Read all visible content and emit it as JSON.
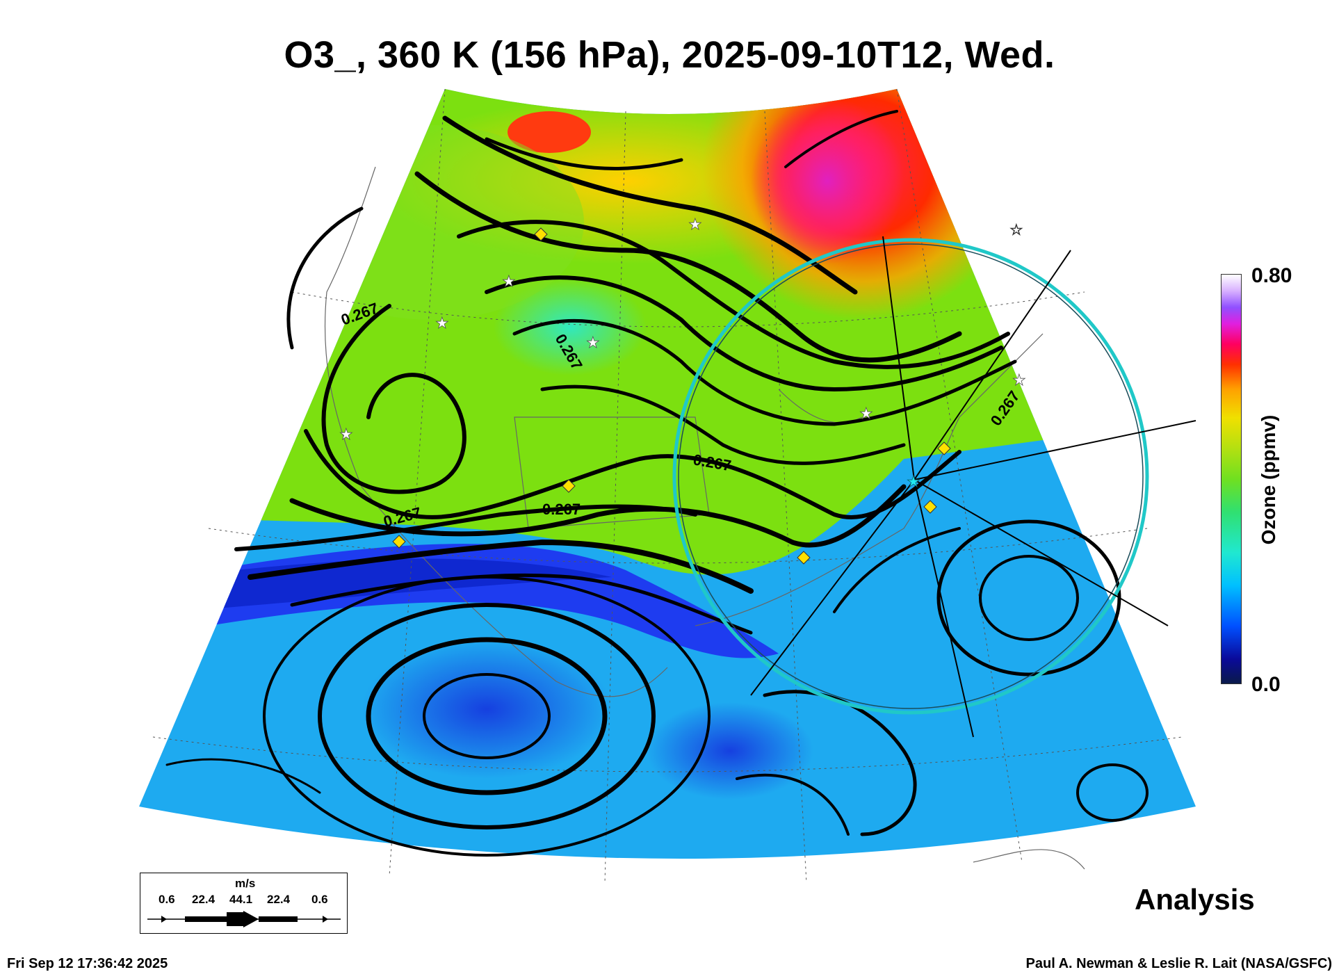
{
  "title": "O3_, 360 K (156 hPa), 2025-09-10T12, Wed.",
  "colorbar": {
    "max_label": "0.80",
    "min_label": "0.0",
    "label": "Ozone (ppmv)",
    "range": [
      0.0,
      0.8
    ]
  },
  "contour_labels": [
    "0.267",
    "0.267",
    "0.267",
    "0.267",
    "0.267",
    "0.267"
  ],
  "analysis_label": "Analysis",
  "footer": {
    "timestamp": "Fri Sep 12 17:36:42 2025",
    "credit": "Paul A. Newman & Leslie R. Lait (NASA/GSFC)"
  },
  "wind_legend": {
    "unit": "m/s",
    "ticks": [
      "0.6",
      "22.4",
      "44.1",
      "22.4",
      "0.6"
    ]
  },
  "colors": {
    "low_ozone": "#1e3cf0",
    "mid_ozone": "#7ce010",
    "high_ozone": "#ff1e00",
    "circle": "#20c8c8",
    "marker": "#ffe000"
  },
  "icons": [
    "star-marker-icon",
    "diamond-marker-icon",
    "wind-arrow-icon"
  ]
}
